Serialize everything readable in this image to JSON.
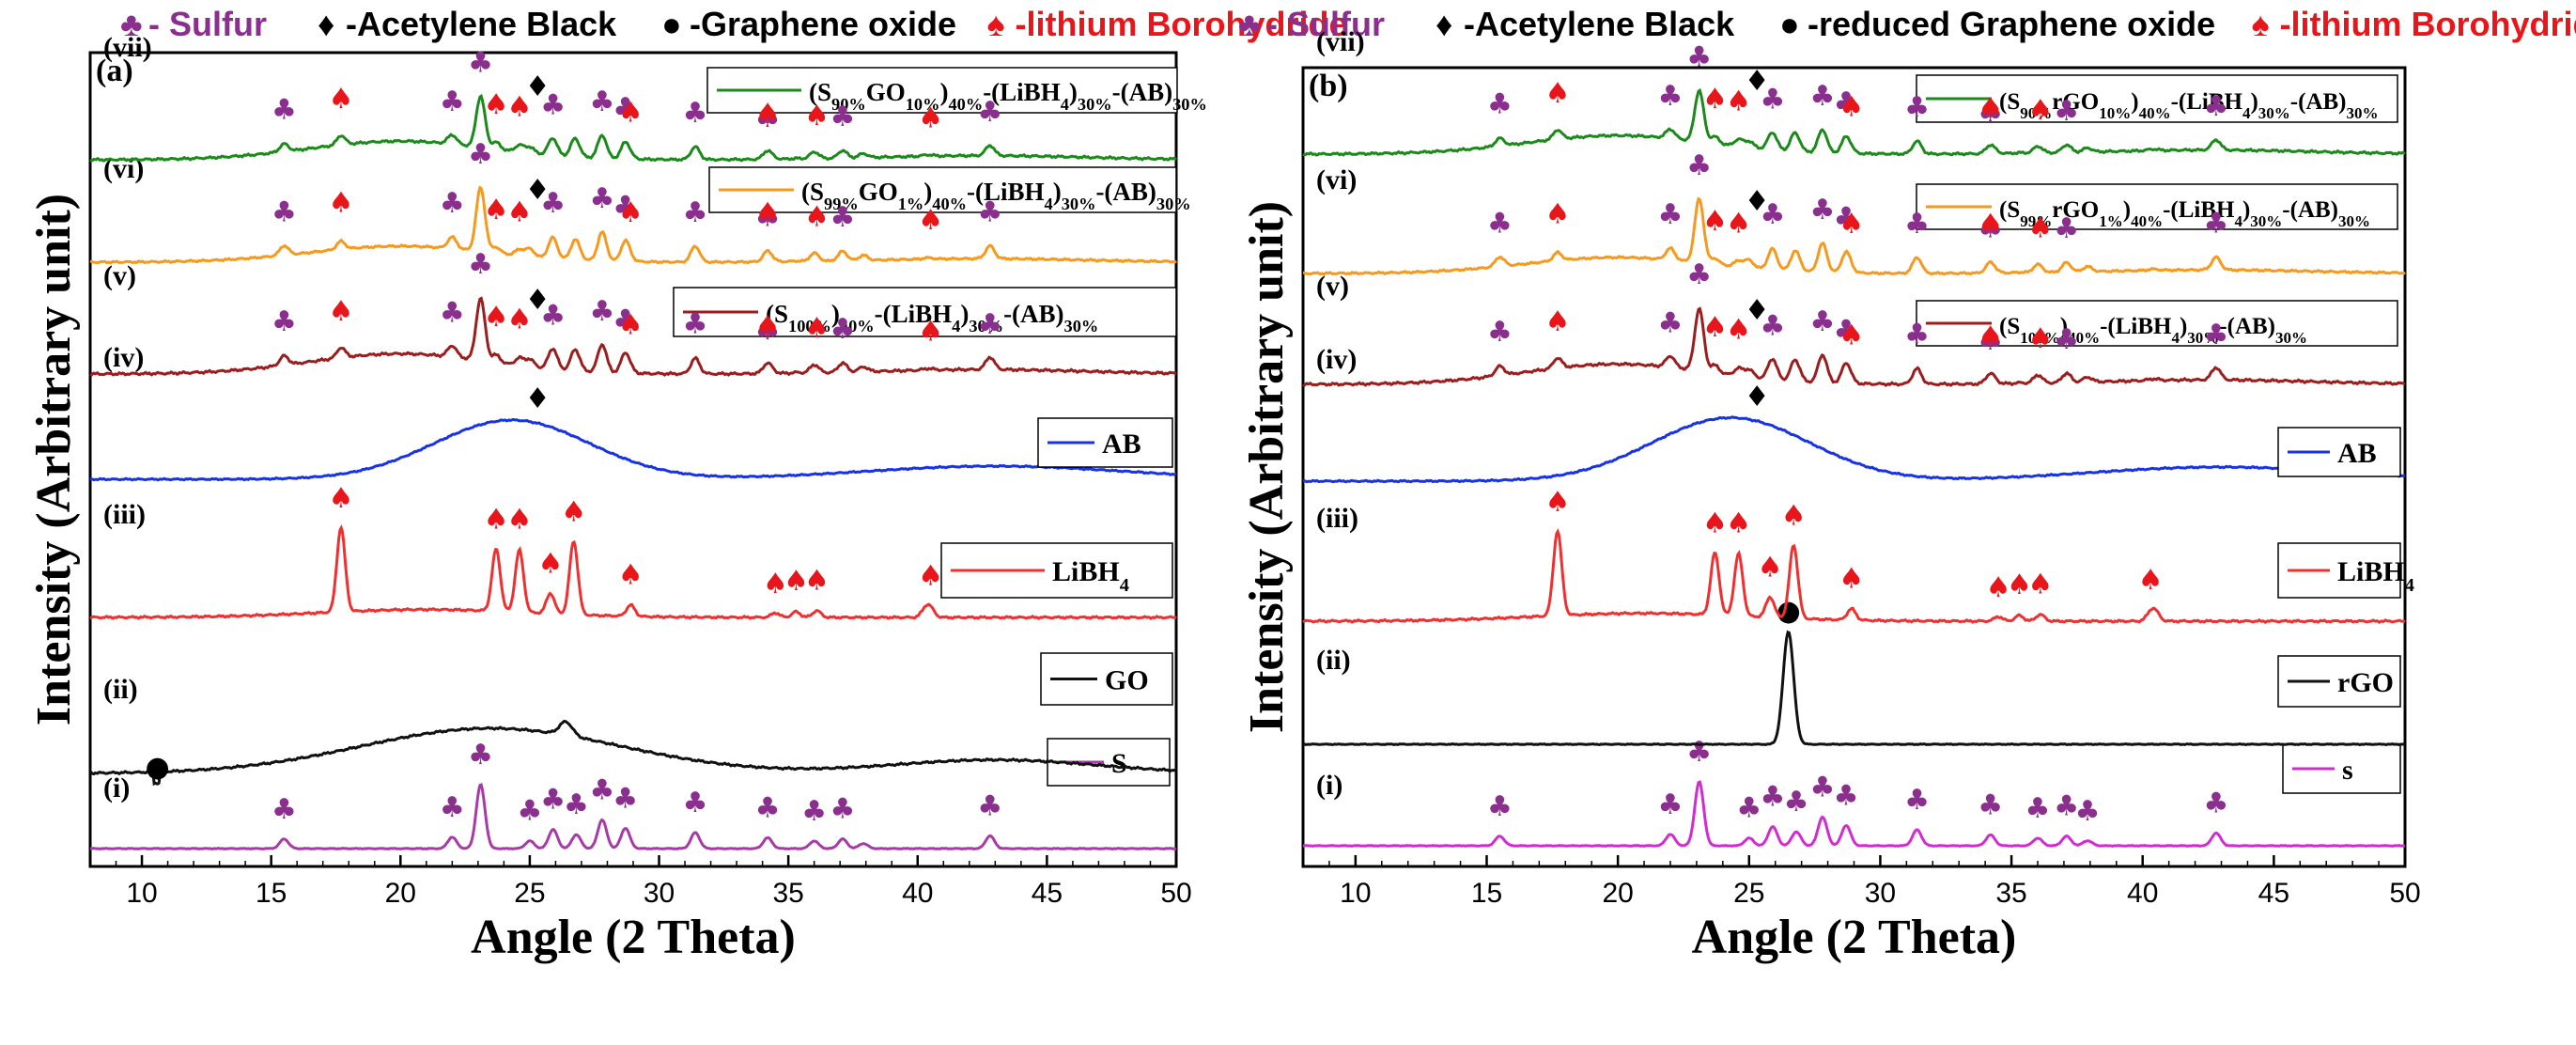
{
  "colors": {
    "sulfur": "#8b2f8f",
    "ab": "#000000",
    "go": "#000000",
    "libh4": "#e8161b",
    "S": "#a83aa8",
    "GO": "#111111",
    "LiBH4": "#f03030",
    "AB": "#1833e6",
    "S100": "#9b1d1d",
    "S99": "#f59a1e",
    "S90": "#1b8a1b",
    "S_b": "#d22bd2",
    "rGO": "#111111"
  },
  "chart_data": [
    {
      "type": "line",
      "panel": "(a)",
      "legend": [
        {
          "symbol": "♣",
          "text": "- Sulfur",
          "color": "#8b2f8f"
        },
        {
          "symbol": "♦",
          "text": "-Acetylene Black",
          "color": "#000000"
        },
        {
          "symbol": "●",
          "text": "-Graphene oxide",
          "color": "#000000"
        },
        {
          "symbol": "♠",
          "text": "-lithium Borohydride",
          "color": "#e8161b"
        }
      ],
      "xlabel": "Angle (2 Theta)",
      "ylabel": "Intensity (Arbitrary unit)",
      "xlim": [
        8,
        50
      ],
      "xticks": [
        10,
        15,
        20,
        25,
        30,
        35,
        40,
        45,
        50
      ],
      "series": [
        {
          "row": "(i)",
          "name": "S",
          "color": "#a83aa8",
          "kind": "sulfur",
          "marks": "sulfur"
        },
        {
          "row": "(ii)",
          "name": "GO",
          "color": "#111111",
          "kind": "go"
        },
        {
          "row": "(iii)",
          "name": "LiBH4",
          "color": "#f03030",
          "kind": "libh4"
        },
        {
          "row": "(iv)",
          "name": "AB",
          "color": "#1833e6",
          "kind": "ab"
        },
        {
          "row": "(v)",
          "name": "(S100%)40%-(LiBH4)30%-(AB)30%",
          "color": "#9b1d1d",
          "kind": "composite",
          "weight": 1.0
        },
        {
          "row": "(vi)",
          "name": "(S99%GO1%)40%-(LiBH4)30%-(AB)30%",
          "color": "#f59a1e",
          "kind": "composite",
          "weight": 1.3
        },
        {
          "row": "(vii)",
          "name": "(S90%GO10%)40%-(LiBH4)30%-(AB)30%",
          "color": "#1b8a1b",
          "kind": "composite",
          "weight": 0.9
        }
      ],
      "peak_positions": {
        "sulfur": [
          15.5,
          22.0,
          23.1,
          25.0,
          25.9,
          26.8,
          27.8,
          28.7,
          31.4,
          34.2,
          36.0,
          37.1,
          42.8
        ],
        "libh4": [
          17.7,
          23.7,
          24.6,
          25.8,
          26.7,
          28.9,
          34.5,
          35.3,
          36.1,
          40.5
        ],
        "ab": [
          25.3
        ],
        "go": [
          10.6
        ]
      },
      "sample_legend": [
        {
          "text": "S"
        },
        {
          "text": "GO"
        },
        {
          "text": "LiBH4"
        },
        {
          "text": "AB"
        },
        {
          "text": "(S100%)40%-(LiBH4)30%-(AB)30%"
        },
        {
          "text": "(S99%GO1%)40%-(LiBH4)30%-(AB)30%"
        },
        {
          "text": "(S90%GO10%)40%-(LiBH4)30%-(AB)30%"
        }
      ]
    },
    {
      "type": "line",
      "panel": "(b)",
      "legend": [
        {
          "symbol": "♣",
          "text": "- Sulfur",
          "color": "#8b2f8f"
        },
        {
          "symbol": "♦",
          "text": "-Acetylene Black",
          "color": "#000000"
        },
        {
          "symbol": "●",
          "text": "-reduced Graphene oxide",
          "color": "#000000"
        },
        {
          "symbol": "♠",
          "text": "-lithium Borohydride",
          "color": "#e8161b"
        }
      ],
      "xlabel": "Angle (2 Theta)",
      "ylabel": "Intensity (Arbitrary unit)",
      "xlim": [
        8,
        50
      ],
      "xticks": [
        10,
        15,
        20,
        25,
        30,
        35,
        40,
        45,
        50
      ],
      "series": [
        {
          "row": "(i)",
          "name": "S",
          "color": "#d22bd2",
          "kind": "sulfur"
        },
        {
          "row": "(ii)",
          "name": "rGO",
          "color": "#111111",
          "kind": "rgo"
        },
        {
          "row": "(iii)",
          "name": "LiBH4",
          "color": "#f03030",
          "kind": "libh4"
        },
        {
          "row": "(iv)",
          "name": "AB",
          "color": "#1833e6",
          "kind": "ab"
        },
        {
          "row": "(v)",
          "name": "(S100%)40%-(LiBH4)30%-(AB)30%",
          "color": "#9b1d1d",
          "kind": "composite",
          "weight": 1.0
        },
        {
          "row": "(vi)",
          "name": "(S99%rGO1%)40%-(LiBH4)30%-(AB)30%",
          "color": "#f59a1e",
          "kind": "composite",
          "weight": 1.3
        },
        {
          "row": "(vii)",
          "name": "(S90%rGO10%)40%-(LiBH4)30%-(AB)30%",
          "color": "#1b8a1b",
          "kind": "composite",
          "weight": 0.9
        }
      ],
      "peak_positions": {
        "sulfur": [
          15.5,
          22.0,
          23.1,
          25.0,
          25.9,
          26.8,
          27.8,
          28.7,
          31.4,
          34.2,
          36.0,
          37.1,
          37.9,
          42.8
        ],
        "libh4": [
          17.7,
          23.7,
          24.6,
          25.8,
          26.7,
          28.9,
          34.5,
          35.3,
          36.1,
          40.3
        ],
        "ab": [
          25.3
        ],
        "rgo": [
          26.5
        ]
      },
      "sample_legend": [
        {
          "text": "s"
        },
        {
          "text": "rGO"
        },
        {
          "text": "LiBH4"
        },
        {
          "text": "AB"
        },
        {
          "text": "(S100%)40%-(LiBH4)30%-(AB)30%"
        },
        {
          "text": "(S99%rGO1%)40%-(LiBH4)30%-(AB)30%"
        },
        {
          "text": "(S90%rGO10%)40%-(LiBH4)30%-(AB)30%"
        }
      ]
    }
  ]
}
